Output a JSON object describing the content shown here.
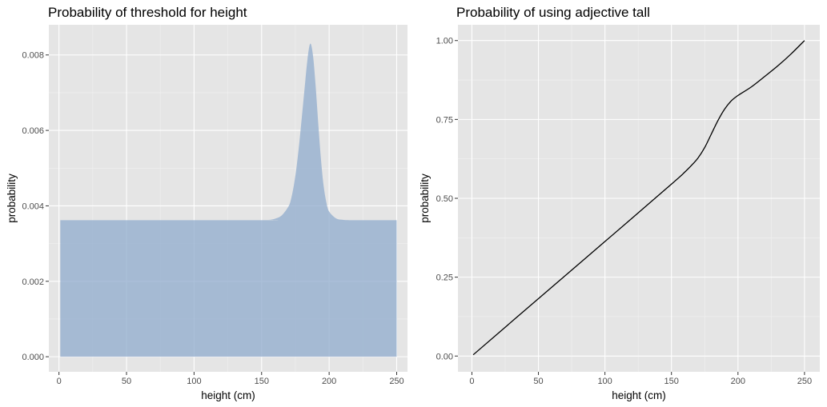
{
  "chart_data": [
    {
      "type": "area",
      "title": "Probability of threshold for height",
      "xlabel": "height (cm)",
      "ylabel": "probability",
      "xlim": [
        -7.5,
        258
      ],
      "ylim": [
        -0.0004,
        0.0088
      ],
      "x_ticks": [
        0,
        50,
        100,
        150,
        200,
        250
      ],
      "x_tick_labels": [
        "0",
        "50",
        "100",
        "150",
        "200",
        "250"
      ],
      "y_ticks": [
        0,
        0.002,
        0.004,
        0.006,
        0.008
      ],
      "y_tick_labels": [
        "0.000",
        "0.002",
        "0.004",
        "0.006",
        "0.008"
      ],
      "grid": true,
      "fill_color": "#8fabcc",
      "fill_opacity": 0.75,
      "x": [
        1,
        150,
        155,
        160,
        165,
        170,
        172,
        174,
        176,
        178,
        180,
        182,
        184,
        186,
        188,
        190,
        192,
        194,
        196,
        198,
        200,
        205,
        210,
        215,
        220,
        250
      ],
      "y": [
        0.00362,
        0.00362,
        0.00363,
        0.00366,
        0.00375,
        0.00399,
        0.00421,
        0.00457,
        0.00506,
        0.0057,
        0.00643,
        0.00718,
        0.00789,
        0.0083,
        0.008,
        0.00718,
        0.00615,
        0.00521,
        0.00451,
        0.00408,
        0.00385,
        0.00367,
        0.00363,
        0.00362,
        0.00362,
        0.00362
      ]
    },
    {
      "type": "line",
      "title": "Probability of using adjective tall",
      "xlabel": "height (cm)",
      "ylabel": "probability",
      "xlim": [
        -10.5,
        261.5
      ],
      "ylim": [
        -0.05,
        1.05
      ],
      "x_ticks": [
        0,
        50,
        100,
        150,
        200,
        250
      ],
      "x_tick_labels": [
        "0",
        "50",
        "100",
        "150",
        "200",
        "250"
      ],
      "y_ticks": [
        0,
        0.25,
        0.5,
        0.75,
        1
      ],
      "y_tick_labels": [
        "0.00",
        "0.25",
        "0.50",
        "0.75",
        "1.00"
      ],
      "grid": true,
      "line_color": "#000000",
      "x": [
        1,
        50,
        100,
        150,
        160,
        165,
        170,
        175,
        180,
        185,
        190,
        195,
        200,
        210,
        220,
        230,
        240,
        250
      ],
      "y": [
        0.004,
        0.182,
        0.363,
        0.545,
        0.583,
        0.604,
        0.628,
        0.661,
        0.704,
        0.747,
        0.783,
        0.809,
        0.826,
        0.853,
        0.886,
        0.92,
        0.958,
        1.0
      ]
    }
  ]
}
